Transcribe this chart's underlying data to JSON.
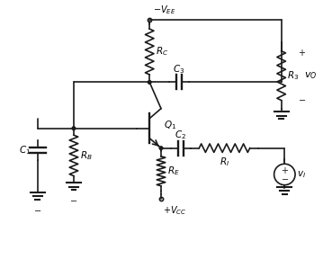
{
  "fig_width": 3.69,
  "fig_height": 2.98,
  "dpi": 100,
  "bg_color": "#ffffff",
  "line_color": "#1a1a1a",
  "lw": 1.2,
  "labels": {
    "VEE": "$-V_{EE}$",
    "RC": "$R_C$",
    "C3": "$C_3$",
    "R3": "$R_3$",
    "vO": "$v_O$",
    "Q1": "$Q_1$",
    "C2": "$C_2$",
    "RE": "$R_E$",
    "VCC": "$+V_{CC}$",
    "RI": "$R_I$",
    "vI": "$v_I$",
    "C1": "$C_1$",
    "RB": "$R_B$"
  }
}
